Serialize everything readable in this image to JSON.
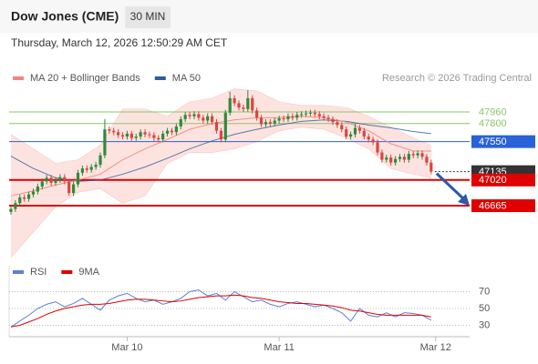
{
  "chart_data": [
    {
      "type": "candlestick",
      "title": "Dow Jones (CME)",
      "timeframe": "30 MIN",
      "subtitle": "Thursday, March 12, 2026 12:50:29 AM CET",
      "credit": "Research © 2026 Trading Central",
      "legend": [
        {
          "name": "MA 20 + Bollinger Bands",
          "color": "#f4857c"
        },
        {
          "name": "MA 50",
          "color": "#2f5d9b"
        }
      ],
      "up_color": "#2f8a3a",
      "down_color": "#d9463e",
      "band_color": "#fcdcd8",
      "xlim": [
        -0.4,
        102.6
      ],
      "xticks": [
        {
          "value": 26,
          "label": "Mar 10"
        },
        {
          "value": 60,
          "label": "Mar 11"
        },
        {
          "value": 95,
          "label": "Mar 12"
        }
      ],
      "ylim": [
        45924,
        48312
      ],
      "candles": [
        [
          46580,
          46660,
          46540,
          46620
        ],
        [
          46620,
          46740,
          46580,
          46700
        ],
        [
          46700,
          46820,
          46660,
          46780
        ],
        [
          46780,
          46820,
          46720,
          46760
        ],
        [
          46760,
          46860,
          46720,
          46820
        ],
        [
          46820,
          46900,
          46780,
          46860
        ],
        [
          46860,
          46970,
          46820,
          46930
        ],
        [
          46930,
          47040,
          46890,
          47000
        ],
        [
          47000,
          47090,
          46960,
          47050
        ],
        [
          47050,
          47090,
          46940,
          46980
        ],
        [
          46980,
          47060,
          46940,
          47020
        ],
        [
          47020,
          47100,
          46980,
          47060
        ],
        [
          47060,
          47100,
          46960,
          47000
        ],
        [
          47000,
          47040,
          46800,
          46840
        ],
        [
          46840,
          47000,
          46800,
          46960
        ],
        [
          46960,
          47160,
          46920,
          47120
        ],
        [
          47120,
          47220,
          47080,
          47180
        ],
        [
          47180,
          47220,
          47120,
          47160
        ],
        [
          47160,
          47240,
          47120,
          47200
        ],
        [
          47200,
          47270,
          47160,
          47230
        ],
        [
          47230,
          47400,
          47190,
          47360
        ],
        [
          47360,
          47860,
          47320,
          47720
        ],
        [
          47720,
          47760,
          47660,
          47700
        ],
        [
          47700,
          47740,
          47640,
          47680
        ],
        [
          47680,
          47720,
          47600,
          47640
        ],
        [
          47640,
          47680,
          47580,
          47620
        ],
        [
          47620,
          47700,
          47580,
          47660
        ],
        [
          47660,
          47700,
          47560,
          47600
        ],
        [
          47600,
          47660,
          47560,
          47620
        ],
        [
          47620,
          47720,
          47580,
          47680
        ],
        [
          47680,
          47720,
          47610,
          47650
        ],
        [
          47650,
          47690,
          47600,
          47640
        ],
        [
          47640,
          47680,
          47560,
          47600
        ],
        [
          47600,
          47640,
          47540,
          47580
        ],
        [
          47580,
          47700,
          47540,
          47660
        ],
        [
          47660,
          47740,
          47620,
          47700
        ],
        [
          47700,
          47740,
          47640,
          47680
        ],
        [
          47680,
          47800,
          47640,
          47760
        ],
        [
          47760,
          47900,
          47720,
          47860
        ],
        [
          47860,
          47960,
          47820,
          47920
        ],
        [
          47920,
          47960,
          47860,
          47900
        ],
        [
          47900,
          47970,
          47860,
          47930
        ],
        [
          47930,
          47970,
          47840,
          47880
        ],
        [
          47880,
          47920,
          47800,
          47840
        ],
        [
          47840,
          47940,
          47800,
          47900
        ],
        [
          47900,
          47940,
          47780,
          47820
        ],
        [
          47820,
          47860,
          47660,
          47700
        ],
        [
          47700,
          47740,
          47540,
          47580
        ],
        [
          47580,
          47990,
          47540,
          47950
        ],
        [
          47950,
          48240,
          47910,
          48150
        ],
        [
          48150,
          48190,
          48040,
          48080
        ],
        [
          48080,
          48120,
          47980,
          48020
        ],
        [
          48020,
          48060,
          47960,
          48000
        ],
        [
          48000,
          48260,
          47960,
          48150
        ],
        [
          48150,
          48190,
          47940,
          47980
        ],
        [
          47980,
          48020,
          47840,
          47880
        ],
        [
          47880,
          47920,
          47750,
          47790
        ],
        [
          47790,
          47860,
          47750,
          47820
        ],
        [
          47820,
          47860,
          47760,
          47800
        ],
        [
          47800,
          47880,
          47760,
          47840
        ],
        [
          47840,
          47910,
          47800,
          47870
        ],
        [
          47870,
          47910,
          47820,
          47860
        ],
        [
          47860,
          47940,
          47820,
          47900
        ],
        [
          47900,
          47940,
          47840,
          47880
        ],
        [
          47880,
          47960,
          47840,
          47920
        ],
        [
          47920,
          47970,
          47880,
          47930
        ],
        [
          47930,
          47980,
          47890,
          47940
        ],
        [
          47940,
          47990,
          47900,
          47950
        ],
        [
          47950,
          47990,
          47890,
          47930
        ],
        [
          47930,
          47970,
          47860,
          47900
        ],
        [
          47900,
          47940,
          47840,
          47880
        ],
        [
          47880,
          47920,
          47820,
          47860
        ],
        [
          47860,
          47900,
          47780,
          47820
        ],
        [
          47820,
          47860,
          47740,
          47780
        ],
        [
          47780,
          47820,
          47680,
          47720
        ],
        [
          47720,
          47760,
          47580,
          47620
        ],
        [
          47620,
          47690,
          47580,
          47650
        ],
        [
          47650,
          47800,
          47610,
          47740
        ],
        [
          47740,
          47780,
          47660,
          47700
        ],
        [
          47700,
          47740,
          47580,
          47620
        ],
        [
          47620,
          47660,
          47540,
          47580
        ],
        [
          47580,
          47620,
          47500,
          47540
        ],
        [
          47540,
          47580,
          47360,
          47400
        ],
        [
          47400,
          47440,
          47260,
          47300
        ],
        [
          47300,
          47370,
          47260,
          47330
        ],
        [
          47330,
          47370,
          47220,
          47260
        ],
        [
          47260,
          47350,
          47220,
          47310
        ],
        [
          47310,
          47380,
          47270,
          47340
        ],
        [
          47340,
          47380,
          47260,
          47300
        ],
        [
          47300,
          47420,
          47260,
          47380
        ],
        [
          47380,
          47420,
          47320,
          47360
        ],
        [
          47360,
          47430,
          47320,
          47390
        ],
        [
          47390,
          47430,
          47300,
          47340
        ],
        [
          47340,
          47380,
          47220,
          47260
        ],
        [
          47260,
          47300,
          47100,
          47135
        ]
      ],
      "overlay_x": [
        0,
        5,
        10,
        15,
        20,
        25,
        30,
        35,
        40,
        45,
        50,
        55,
        60,
        65,
        70,
        75,
        80,
        85,
        90,
        94
      ],
      "bb_upper": [
        47650,
        47450,
        47250,
        47300,
        47500,
        48000,
        48000,
        47900,
        48100,
        48150,
        48280,
        48250,
        48100,
        48050,
        48050,
        48020,
        47900,
        47750,
        47600,
        47500
      ],
      "bb_lower": [
        45950,
        46300,
        46650,
        46850,
        46900,
        46700,
        46800,
        47250,
        47400,
        47400,
        47450,
        47550,
        47700,
        47750,
        47720,
        47600,
        47450,
        47180,
        47100,
        47050
      ],
      "ma20": [
        46800,
        46870,
        46950,
        47020,
        47100,
        47300,
        47450,
        47580,
        47720,
        47800,
        47850,
        47880,
        47880,
        47900,
        47880,
        47820,
        47700,
        47520,
        47420,
        47420
      ],
      "ma50": [
        47350,
        47180,
        47050,
        47000,
        47020,
        47100,
        47200,
        47320,
        47450,
        47560,
        47650,
        47720,
        47780,
        47830,
        47850,
        47830,
        47780,
        47740,
        47690,
        47660
      ],
      "levels": [
        {
          "value": 47960,
          "color": "#8cc56b",
          "width": 1,
          "box": false,
          "style": "solid"
        },
        {
          "value": 47800,
          "color": "#8cc56b",
          "width": 1,
          "box": false,
          "style": "solid"
        },
        {
          "value": 47550,
          "color": "#2962d9",
          "width": 1,
          "box": true,
          "style": "solid"
        },
        {
          "value": 47135,
          "color": "#333333",
          "width": 1,
          "box": true,
          "style": "dotted"
        },
        {
          "value": 47020,
          "color": "#e00000",
          "width": 2,
          "box": true,
          "style": "solid"
        },
        {
          "value": 46665,
          "color": "#e00000",
          "width": 2,
          "box": true,
          "style": "solid"
        }
      ]
    },
    {
      "type": "line",
      "x": [
        0,
        2,
        4,
        6,
        8,
        10,
        12,
        14,
        16,
        18,
        20,
        22,
        24,
        26,
        28,
        30,
        32,
        34,
        36,
        38,
        40,
        42,
        44,
        46,
        48,
        50,
        52,
        54,
        56,
        58,
        60,
        62,
        64,
        66,
        68,
        70,
        72,
        74,
        76,
        78,
        80,
        82,
        84,
        86,
        88,
        90,
        92,
        94
      ],
      "ylim": [
        18.6,
        81.4
      ],
      "yticks": [
        30,
        50,
        70
      ],
      "series": [
        {
          "name": "RSI",
          "color": "#5b7fd6",
          "values": [
            28,
            35,
            42,
            50,
            55,
            58,
            52,
            56,
            62,
            55,
            48,
            60,
            65,
            68,
            62,
            58,
            60,
            55,
            58,
            62,
            70,
            72,
            65,
            68,
            60,
            70,
            64,
            58,
            60,
            55,
            52,
            56,
            58,
            55,
            52,
            54,
            50,
            45,
            35,
            50,
            42,
            40,
            45,
            40,
            45,
            44,
            42,
            36
          ]
        },
        {
          "name": "9MA",
          "color": "#e00000",
          "values": [
            28,
            30,
            34,
            38,
            43,
            47,
            50,
            52,
            54,
            55,
            55,
            56,
            58,
            60,
            61,
            61,
            60,
            59,
            58,
            59,
            61,
            63,
            64,
            65,
            65,
            66,
            65,
            63,
            62,
            60,
            58,
            57,
            56,
            56,
            55,
            54,
            53,
            51,
            48,
            47,
            45,
            43,
            42,
            42,
            42,
            42,
            42,
            40
          ]
        }
      ]
    }
  ]
}
